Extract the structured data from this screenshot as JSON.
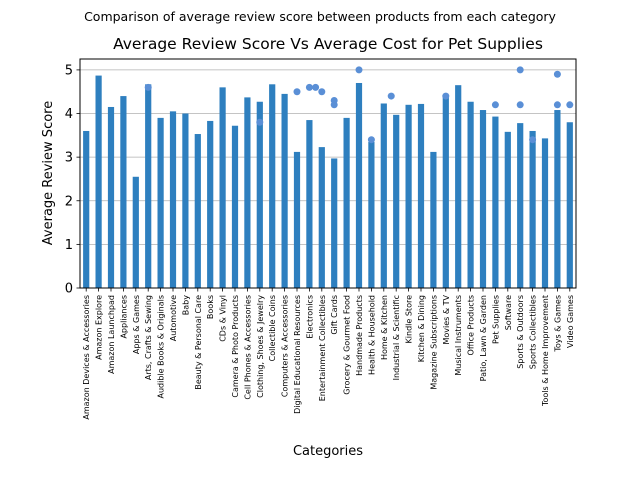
{
  "chart_data": {
    "type": "bar",
    "suptitle": "Comparison of average review score between products from each category",
    "title": "Average Review Score Vs Average Cost for Pet Supplies",
    "xlabel": "Categories",
    "ylabel": "Average Review Score",
    "ylim": [
      0,
      5.25
    ],
    "yticks": [
      0,
      1,
      2,
      3,
      4,
      5
    ],
    "grid": "horizontal",
    "bar_color": "#2e7fbf",
    "point_color": "#5a8fd6",
    "categories": [
      "Amazon Devices & Accessories",
      "Amazon Explore",
      "Amazon Launchpad",
      "Appliances",
      "Apps & Games",
      "Arts, Crafts & Sewing",
      "Audible Books & Originals",
      "Automotive",
      "Baby",
      "Beauty & Personal Care",
      "Books",
      "CDs & Vinyl",
      "Camera & Photo Products",
      "Cell Phones & Accessories",
      "Clothing, Shoes & Jewelry",
      "Collectible Coins",
      "Computers & Accessories",
      "Digital Educational Resources",
      "Electronics",
      "Entertainment Collectibles",
      "Gift Cards",
      "Grocery & Gourmet Food",
      "Handmade Products",
      "Health & Household",
      "Home & Kitchen",
      "Industrial & Scientific",
      "Kindle Store",
      "Kitchen & Dining",
      "Magazine Subscriptions",
      "Movies & TV",
      "Musical Instruments",
      "Office Products",
      "Patio, Lawn & Garden",
      "Pet Supplies",
      "Software",
      "Sports & Outdoors",
      "Sports Collectibles",
      "Tools & Home Improvement",
      "Toys & Games",
      "Video Games"
    ],
    "values": [
      3.6,
      4.87,
      4.15,
      4.4,
      2.55,
      4.67,
      3.9,
      4.05,
      4.0,
      3.53,
      3.83,
      4.6,
      3.72,
      4.37,
      4.27,
      4.67,
      4.45,
      3.12,
      3.85,
      3.23,
      2.97,
      3.9,
      4.7,
      3.35,
      4.23,
      3.97,
      4.2,
      4.22,
      3.12,
      4.38,
      4.65,
      4.27,
      4.08,
      3.93,
      3.58,
      3.78,
      3.6,
      3.43,
      4.08,
      3.8
    ],
    "scatter_points": [
      {
        "x": 5,
        "y": 4.6
      },
      {
        "x": 14,
        "y": 3.8
      },
      {
        "x": 17,
        "y": 4.5
      },
      {
        "x": 18,
        "y": 4.6
      },
      {
        "x": 18.5,
        "y": 4.6
      },
      {
        "x": 19,
        "y": 4.5
      },
      {
        "x": 20,
        "y": 4.3
      },
      {
        "x": 20,
        "y": 4.2
      },
      {
        "x": 22,
        "y": 5.0
      },
      {
        "x": 23,
        "y": 3.4
      },
      {
        "x": 24.6,
        "y": 4.4
      },
      {
        "x": 29,
        "y": 4.4
      },
      {
        "x": 33,
        "y": 4.2
      },
      {
        "x": 35,
        "y": 4.2
      },
      {
        "x": 35,
        "y": 5.0
      },
      {
        "x": 36,
        "y": 3.4
      },
      {
        "x": 38,
        "y": 4.2
      },
      {
        "x": 38,
        "y": 4.9
      },
      {
        "x": 39,
        "y": 4.2
      }
    ]
  }
}
